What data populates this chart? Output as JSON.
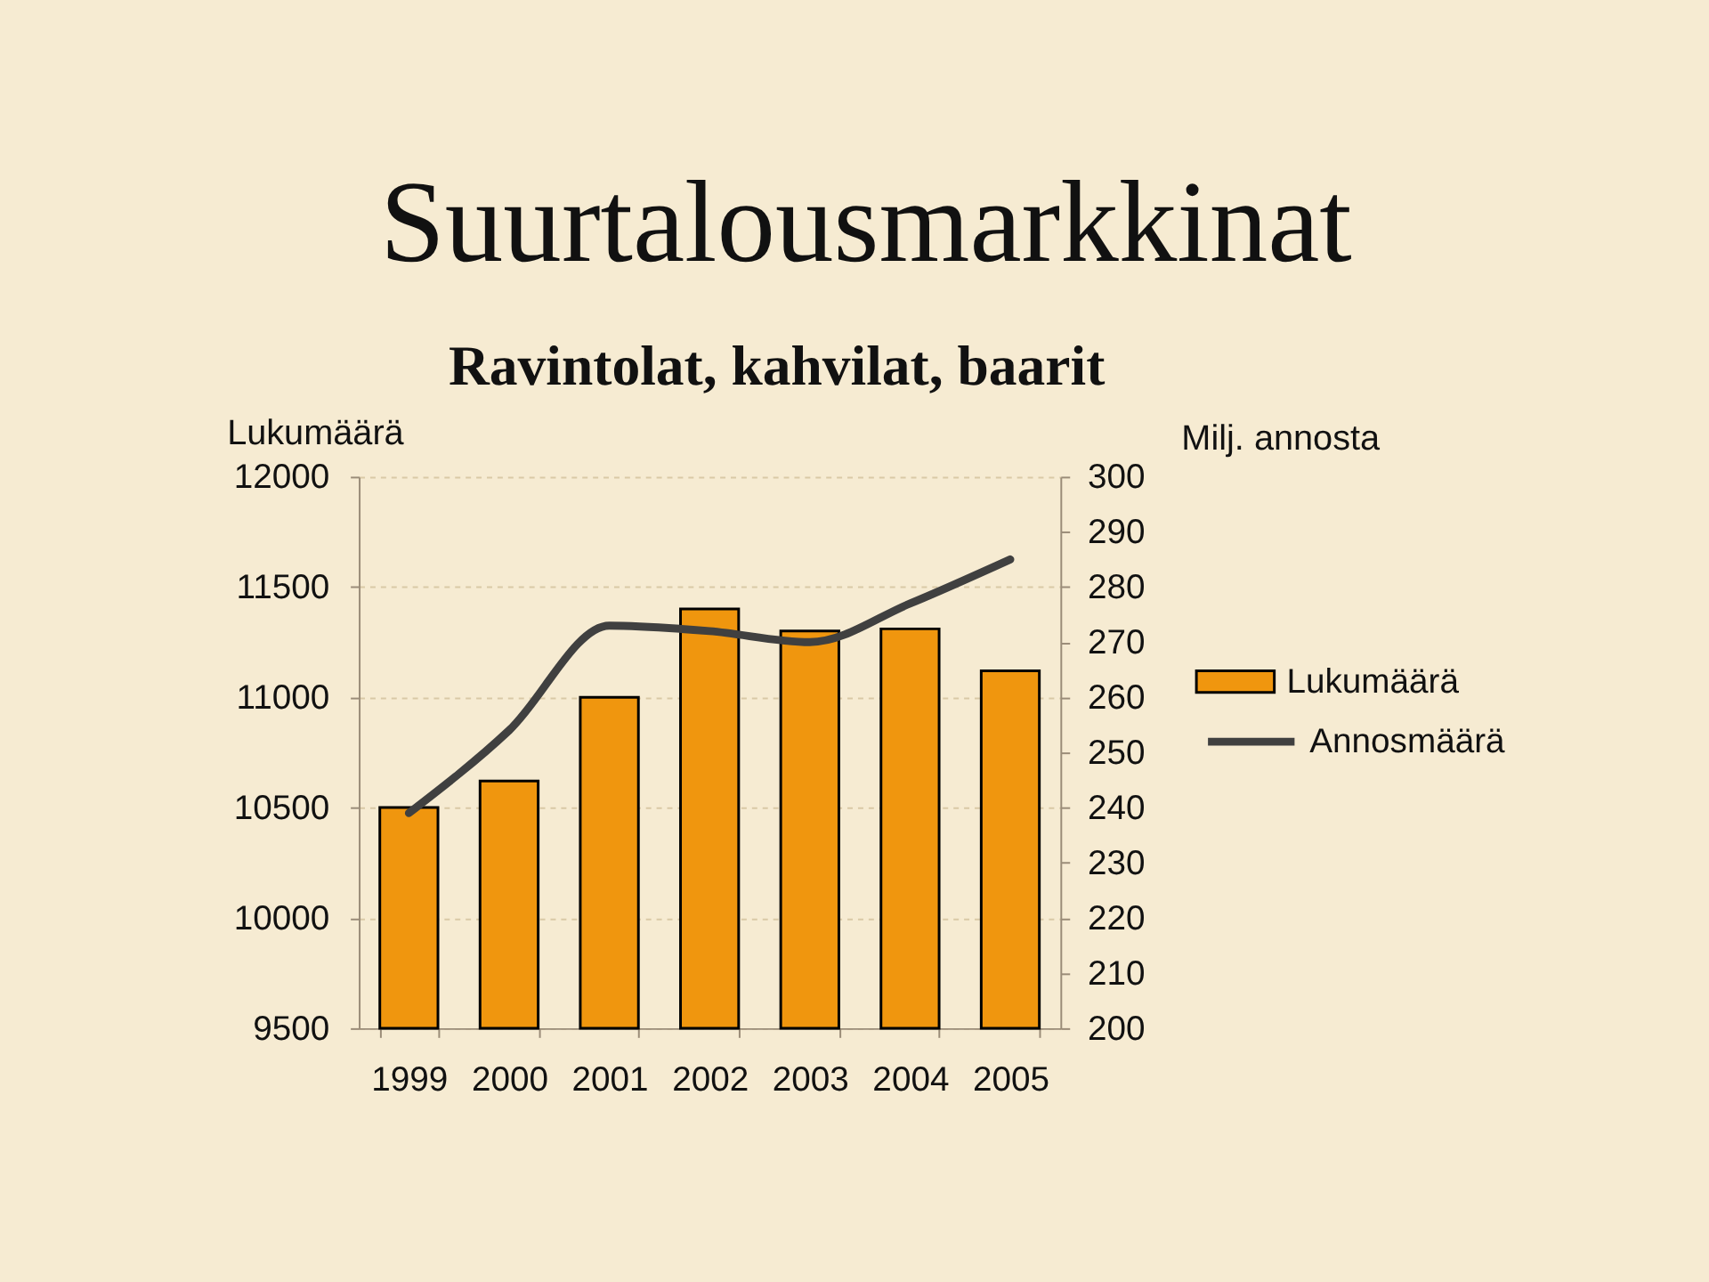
{
  "chart_data": {
    "type": "bar",
    "title": "Suurtalousmarkkinat",
    "subtitle": "Ravintolat, kahvilat, baarit",
    "ylabel": "Lukumäärä",
    "y2label": "Milj. annosta",
    "categories": [
      "1999",
      "2000",
      "2001",
      "2002",
      "2003",
      "2004",
      "2005"
    ],
    "series": [
      {
        "name": "Lukumäärä",
        "color": "#f0960e",
        "values": [
          10500,
          10620,
          11000,
          11400,
          11300,
          11310,
          11120
        ]
      },
      {
        "name": "Annosmäärä",
        "type": "line",
        "axis": "y2",
        "color": "#404040",
        "values": [
          239,
          254,
          273,
          272,
          270,
          277,
          285
        ]
      }
    ],
    "ylim": [
      9500,
      12000
    ],
    "yticks": [
      9500,
      10000,
      10500,
      11000,
      11500,
      12000
    ],
    "y2lim": [
      200,
      300
    ],
    "y2ticks": [
      200,
      210,
      220,
      230,
      240,
      250,
      260,
      270,
      280,
      290,
      300
    ],
    "grid": "y",
    "legend": "right"
  }
}
